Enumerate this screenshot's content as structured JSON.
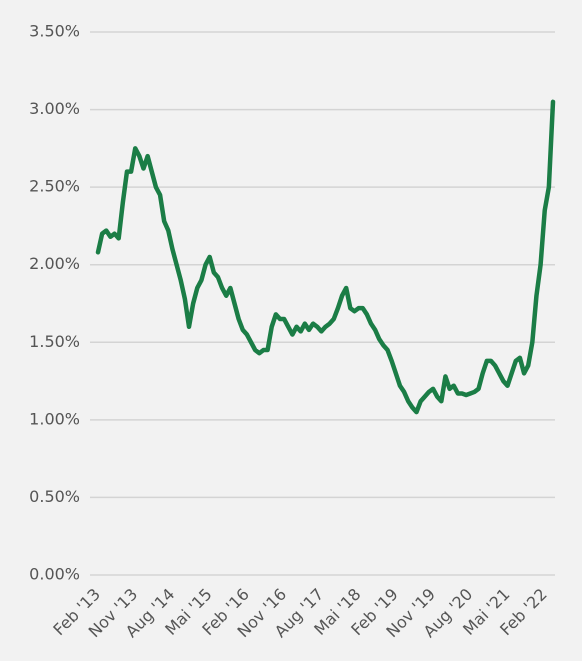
{
  "chart_data": {
    "type": "line",
    "categories": [
      "Feb '13",
      null,
      null,
      null,
      null,
      null,
      null,
      null,
      null,
      "Nov '13",
      null,
      null,
      null,
      null,
      null,
      null,
      null,
      null,
      "Aug '14",
      null,
      null,
      null,
      null,
      null,
      null,
      null,
      null,
      "Mai '15",
      null,
      null,
      null,
      null,
      null,
      null,
      null,
      null,
      "Feb '16",
      null,
      null,
      null,
      null,
      null,
      null,
      null,
      null,
      "Nov '16",
      null,
      null,
      null,
      null,
      null,
      null,
      null,
      null,
      "Aug '17",
      null,
      null,
      null,
      null,
      null,
      null,
      null,
      null,
      "Mai '18",
      null,
      null,
      null,
      null,
      null,
      null,
      null,
      null,
      "Feb '19",
      null,
      null,
      null,
      null,
      null,
      null,
      null,
      null,
      "Nov '19",
      null,
      null,
      null,
      null,
      null,
      null,
      null,
      null,
      "Aug '20",
      null,
      null,
      null,
      null,
      null,
      null,
      null,
      null,
      "Mai '21",
      null,
      null,
      null,
      null,
      null,
      null,
      null,
      null,
      "Feb '22",
      null,
      null
    ],
    "color": "#1b7d46",
    "values": [
      2.08,
      2.2,
      2.22,
      2.18,
      2.2,
      2.17,
      2.4,
      2.6,
      2.6,
      2.75,
      2.7,
      2.62,
      2.7,
      2.6,
      2.5,
      2.45,
      2.28,
      2.22,
      2.1,
      2.0,
      1.9,
      1.78,
      1.6,
      1.75,
      1.85,
      1.9,
      2.0,
      2.05,
      1.95,
      1.92,
      1.85,
      1.8,
      1.85,
      1.75,
      1.65,
      1.58,
      1.55,
      1.5,
      1.45,
      1.43,
      1.45,
      1.45,
      1.6,
      1.68,
      1.65,
      1.65,
      1.6,
      1.55,
      1.6,
      1.57,
      1.62,
      1.58,
      1.62,
      1.6,
      1.57,
      1.6,
      1.62,
      1.65,
      1.72,
      1.8,
      1.85,
      1.72,
      1.7,
      1.72,
      1.72,
      1.68,
      1.62,
      1.58,
      1.52,
      1.48,
      1.45,
      1.38,
      1.3,
      1.22,
      1.18,
      1.12,
      1.08,
      1.05,
      1.12,
      1.15,
      1.18,
      1.2,
      1.15,
      1.12,
      1.28,
      1.2,
      1.22,
      1.17,
      1.17,
      1.16,
      1.17,
      1.18,
      1.2,
      1.3,
      1.38,
      1.38,
      1.35,
      1.3,
      1.25,
      1.22,
      1.3,
      1.38,
      1.4,
      1.3,
      1.35,
      1.5,
      1.8,
      2.0,
      2.35,
      2.5,
      3.05
    ],
    "ylim": [
      0,
      3.5
    ],
    "yticks": [
      {
        "value": 0,
        "label": "0.00%"
      },
      {
        "value": 0.5,
        "label": "0.50%"
      },
      {
        "value": 1,
        "label": "1.00%"
      },
      {
        "value": 1.5,
        "label": "1.50%"
      },
      {
        "value": 2,
        "label": "2.00%"
      },
      {
        "value": 2.5,
        "label": "2.50%"
      },
      {
        "value": 3,
        "label": "3.00%"
      },
      {
        "value": 3.5,
        "label": "3.50%"
      }
    ],
    "grid": true
  }
}
